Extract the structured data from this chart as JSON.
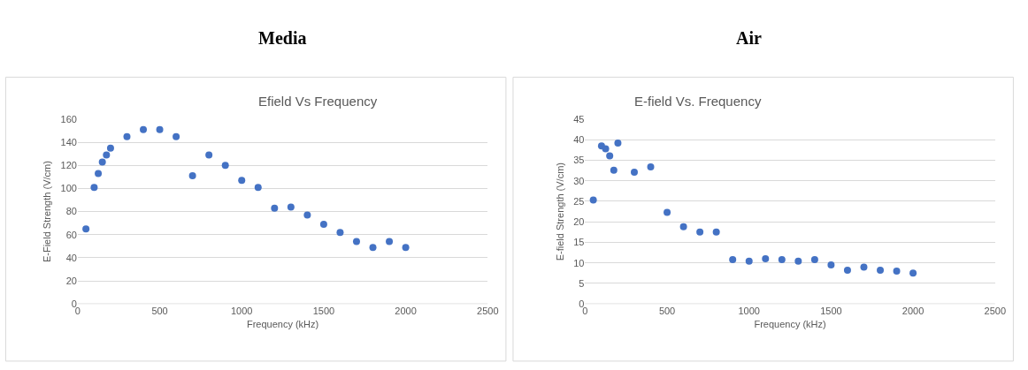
{
  "chart_data": [
    {
      "type": "scatter",
      "title": "Media",
      "subtitle": "Efield Vs Frequency",
      "xlabel": "Frequency (kHz)",
      "ylabel": "E-Field Strength (V/cm)",
      "x": [
        50,
        100,
        125,
        150,
        175,
        200,
        300,
        400,
        500,
        600,
        700,
        800,
        900,
        1000,
        1100,
        1200,
        1300,
        1400,
        1500,
        1600,
        1700,
        1800,
        1900,
        2000
      ],
      "series": [
        {
          "color": "#4472c4",
          "values": [
            65,
            101,
            113,
            123,
            129,
            135,
            145,
            151,
            151,
            145,
            111,
            129,
            120,
            107,
            101,
            83,
            84,
            77,
            69,
            62,
            54,
            49,
            54,
            49
          ]
        }
      ],
      "xlim": [
        0,
        2500
      ],
      "xticks": [
        0,
        500,
        1000,
        1500,
        2000,
        2500
      ],
      "ylim": [
        0,
        160
      ],
      "yticks": [
        0,
        20,
        40,
        60,
        80,
        100,
        120,
        140,
        160
      ],
      "grid": "y",
      "marker": "circle"
    },
    {
      "type": "scatter",
      "title": "Air",
      "subtitle": "E-field Vs. Frequency",
      "xlabel": "Frequency (kHz)",
      "ylabel": "E-field Strength (V/cm)",
      "x": [
        50,
        100,
        125,
        150,
        175,
        200,
        300,
        400,
        500,
        600,
        700,
        800,
        900,
        1000,
        1100,
        1200,
        1300,
        1400,
        1500,
        1600,
        1700,
        1800,
        1900,
        2000
      ],
      "series": [
        {
          "color": "#4472c4",
          "values": [
            25.3,
            38.5,
            37.8,
            36.1,
            32.6,
            39.2,
            32.1,
            33.4,
            22.3,
            18.8,
            17.5,
            17.5,
            10.8,
            10.4,
            11.0,
            10.8,
            10.4,
            10.8,
            9.5,
            8.2,
            9.0,
            8.2,
            8.0,
            7.5
          ]
        }
      ],
      "xlim": [
        0,
        2500
      ],
      "xticks": [
        0,
        500,
        1000,
        1500,
        2000,
        2500
      ],
      "ylim": [
        0,
        45
      ],
      "yticks": [
        0,
        5,
        10,
        15,
        20,
        25,
        30,
        35,
        40,
        45
      ],
      "grid": "y",
      "marker": "circle"
    }
  ]
}
